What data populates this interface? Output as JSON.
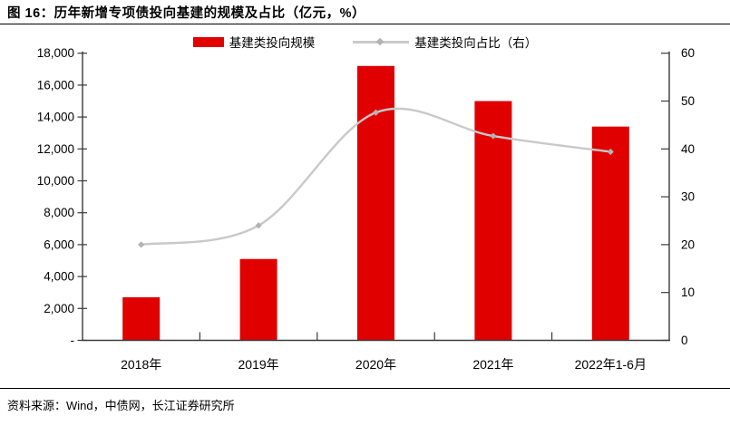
{
  "figure": {
    "title": "图 16：历年新增专项债投向基建的规模及占比（亿元，%）",
    "source": "资料来源：Wind，中债网，长江证券研究所"
  },
  "legend": {
    "items": [
      {
        "label": "基建类投向规模",
        "type": "bar"
      },
      {
        "label": "基建类投向占比（右）",
        "type": "line"
      }
    ]
  },
  "colors": {
    "bar": "#e00000",
    "line": "#c9c9c9",
    "marker": "#b3b3b3",
    "axis": "#3a3a3a",
    "text": "#000000"
  },
  "chart_data": {
    "type": "bar",
    "title": "历年新增专项债投向基建的规模及占比",
    "units": "亿元，%",
    "categories": [
      "2018年",
      "2019年",
      "2020年",
      "2021年",
      "2022年1-6月"
    ],
    "series": [
      {
        "name": "基建类投向规模",
        "type": "bar",
        "axis": "left",
        "values": [
          2700,
          5100,
          17200,
          15000,
          13400
        ]
      },
      {
        "name": "基建类投向占比（右）",
        "type": "line",
        "axis": "right",
        "marker": "diamond",
        "smooth": true,
        "values": [
          20,
          24,
          47.6,
          42.7,
          39.4
        ]
      }
    ],
    "left_axis": {
      "min": 0,
      "max": 18000,
      "step": 2000,
      "tick_labels_bottom_to_top": [
        "-",
        "2,000",
        "4,000",
        "6,000",
        "8,000",
        "10,000",
        "12,000",
        "14,000",
        "16,000",
        "18,000"
      ]
    },
    "right_axis": {
      "min": 0,
      "max": 60,
      "step": 10,
      "tick_labels_bottom_to_top": [
        "0",
        "10",
        "20",
        "30",
        "40",
        "50",
        "60"
      ]
    },
    "grid": false,
    "legend_position": "top"
  }
}
